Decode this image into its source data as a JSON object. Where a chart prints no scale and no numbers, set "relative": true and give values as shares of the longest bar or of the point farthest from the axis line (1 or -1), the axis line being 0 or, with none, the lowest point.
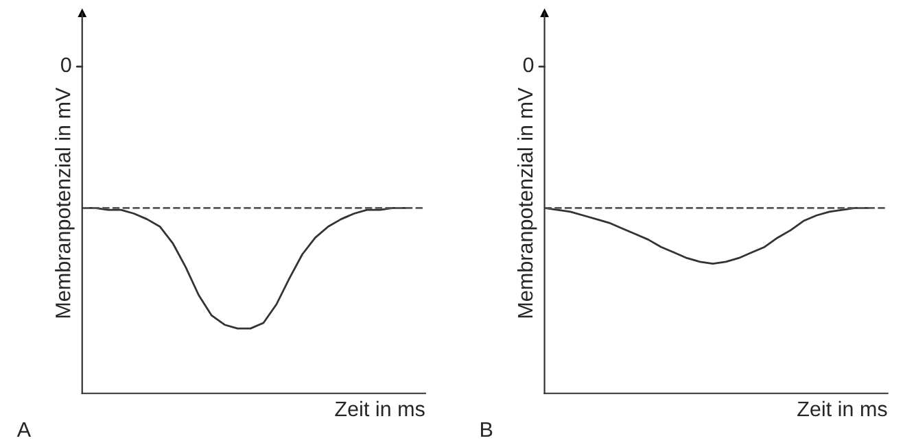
{
  "chart_data": [
    {
      "type": "line",
      "relative": true,
      "xlabel": "Zeit in ms",
      "ylabel": "Membranpotenzial in mV",
      "categories": [
        null,
        null,
        null,
        null,
        null,
        null,
        null,
        null,
        null,
        null,
        null,
        null,
        null,
        null,
        null,
        null,
        null,
        null,
        null,
        null,
        null,
        null,
        null,
        null,
        null,
        null
      ],
      "series": [
        {
          "color": "#333333",
          "values": [
            1.0,
            1.0,
            0.99,
            0.99,
            0.97,
            0.94,
            0.9,
            0.81,
            0.68,
            0.53,
            0.42,
            0.37,
            0.35,
            0.35,
            0.38,
            0.48,
            0.62,
            0.75,
            0.84,
            0.9,
            0.94,
            0.97,
            0.99,
            0.99,
            1.0,
            1.0
          ]
        }
      ],
      "ref_lines": [
        {
          "axis": "y",
          "value": 1,
          "color": "#555555",
          "line_style": "dashed"
        }
      ],
      "annotations": [
        "0",
        "A"
      ],
      "marker": "none",
      "line_style": "solid"
    },
    {
      "type": "line",
      "relative": true,
      "xlabel": "Zeit in ms",
      "ylabel": "Membranpotenzial in mV",
      "categories": [
        null,
        null,
        null,
        null,
        null,
        null,
        null,
        null,
        null,
        null,
        null,
        null,
        null,
        null,
        null,
        null,
        null,
        null,
        null,
        null,
        null,
        null,
        null,
        null,
        null,
        null
      ],
      "series": [
        {
          "color": "#333333",
          "values": [
            1.0,
            0.99,
            0.98,
            0.96,
            0.94,
            0.92,
            0.89,
            0.86,
            0.83,
            0.79,
            0.76,
            0.73,
            0.71,
            0.7,
            0.71,
            0.73,
            0.76,
            0.79,
            0.84,
            0.88,
            0.93,
            0.96,
            0.98,
            0.99,
            1.0,
            1.0
          ]
        }
      ],
      "ref_lines": [
        {
          "axis": "y",
          "value": 1,
          "color": "#555555",
          "line_style": "dashed"
        }
      ],
      "annotations": [
        "0",
        "B"
      ],
      "marker": "none",
      "line_style": "solid"
    }
  ]
}
